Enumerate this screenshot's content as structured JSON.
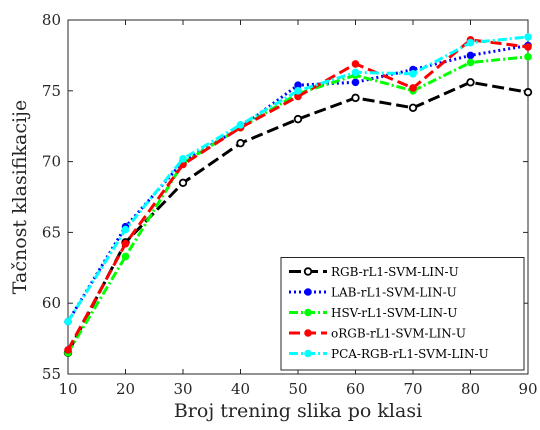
{
  "chart_data": {
    "type": "line",
    "title": "",
    "xlabel": "Broj trening slika po klasi",
    "ylabel": "Tačnost klasifikacije",
    "x": [
      10,
      20,
      30,
      40,
      50,
      60,
      70,
      80,
      90
    ],
    "xlim": [
      10,
      90
    ],
    "ylim": [
      55,
      80
    ],
    "xticks": [
      "10",
      "20",
      "30",
      "40",
      "50",
      "60",
      "70",
      "80",
      "90"
    ],
    "yticks": [
      "55",
      "60",
      "65",
      "70",
      "75",
      "80"
    ],
    "grid": false,
    "legend_position": "bottom-right",
    "series": [
      {
        "name": "RGB-rL1-SVM-LIN-U",
        "color": "#000000",
        "dash": "long-dash",
        "marker": "open-circle",
        "values": [
          56.5,
          64.3,
          68.5,
          71.3,
          73.0,
          74.5,
          73.8,
          75.6,
          74.9
        ]
      },
      {
        "name": "LAB-rL1-SVM-LIN-U",
        "color": "#0000ff",
        "dash": "dotted",
        "marker": "filled-circle",
        "values": [
          58.7,
          65.4,
          70.0,
          72.4,
          75.4,
          75.6,
          76.5,
          77.5,
          78.2
        ]
      },
      {
        "name": "HSV-rL1-SVM-LIN-U",
        "color": "#00ff00",
        "dash": "dash-dot",
        "marker": "filled-circle",
        "values": [
          56.5,
          63.3,
          69.9,
          72.4,
          74.8,
          76.1,
          75.0,
          77.0,
          77.4
        ]
      },
      {
        "name": "oRGB-rL1-SVM-LIN-U",
        "color": "#ff0000",
        "dash": "dashed",
        "marker": "filled-circle",
        "values": [
          56.7,
          64.2,
          69.8,
          72.4,
          74.6,
          76.9,
          75.2,
          78.6,
          78.1
        ]
      },
      {
        "name": "PCA-RGB-rL1-SVM-LIN-U",
        "color": "#00ffff",
        "dash": "dash-dot",
        "marker": "filled-circle",
        "values": [
          58.7,
          65.2,
          70.2,
          72.6,
          75.0,
          76.3,
          76.2,
          78.4,
          78.8
        ]
      }
    ]
  }
}
